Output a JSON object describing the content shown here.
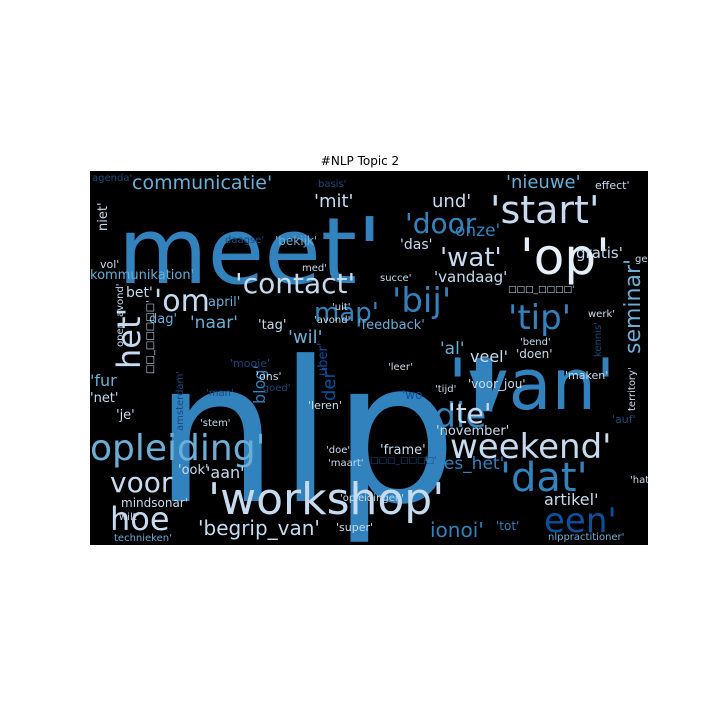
{
  "title": "#NLP Topic 2",
  "colors": {
    "background": "#000000",
    "strong": "#3182bd",
    "medium": "#6baed6",
    "light": "#c6dbef",
    "pale": "#e6f0fa",
    "dim": "#08519c",
    "dark": "#174a7c"
  },
  "words": [
    {
      "t": "meet'",
      "c": "strong"
    },
    {
      "t": "nlp'",
      "c": "strong"
    },
    {
      "t": "'workshop'",
      "c": "light"
    },
    {
      "t": "'van'",
      "c": "strong"
    },
    {
      "t": "'op'",
      "c": "pale"
    },
    {
      "t": "'start'",
      "c": "light"
    },
    {
      "t": "opleiding'",
      "c": "medium"
    },
    {
      "t": "weekend'",
      "c": "light"
    },
    {
      "t": "'contact'",
      "c": "light"
    },
    {
      "t": "'tip'",
      "c": "strong"
    },
    {
      "t": "'bij'",
      "c": "strong"
    },
    {
      "t": "'die'",
      "c": "strong"
    },
    {
      "t": "'dat'",
      "c": "strong"
    },
    {
      "t": "een'",
      "c": "dim"
    },
    {
      "t": "'om",
      "c": "light"
    },
    {
      "t": "het'",
      "c": "light"
    },
    {
      "t": "hoe",
      "c": "light"
    },
    {
      "t": "voor",
      "c": "light"
    },
    {
      "t": "'wat'",
      "c": "light"
    },
    {
      "t": "'door",
      "c": "strong"
    },
    {
      "t": "'te'",
      "c": "light"
    },
    {
      "t": "seminar'",
      "c": "medium"
    },
    {
      "t": "map'",
      "c": "strong"
    },
    {
      "t": "'begrip_van'",
      "c": "light"
    },
    {
      "t": "communicatie'",
      "c": "medium"
    },
    {
      "t": "'mit'",
      "c": "light"
    },
    {
      "t": "und'",
      "c": "light"
    },
    {
      "t": "'nieuwe'",
      "c": "medium"
    },
    {
      "t": "onze'",
      "c": "strong"
    },
    {
      "t": "'naar'",
      "c": "medium"
    },
    {
      "t": "'vandaag'",
      "c": "light"
    },
    {
      "t": "'wil'",
      "c": "medium"
    },
    {
      "t": "'lees_het'",
      "c": "strong"
    },
    {
      "t": "'aan'",
      "c": "light"
    },
    {
      "t": "ionoi'",
      "c": "strong"
    },
    {
      "t": "artikel'",
      "c": "light"
    },
    {
      "t": "blog'",
      "c": "strong"
    },
    {
      "t": "der'",
      "c": "dim"
    },
    {
      "t": "veel'",
      "c": "light"
    },
    {
      "t": "gratis'",
      "c": "light"
    },
    {
      "t": "effect'",
      "c": "light"
    },
    {
      "t": "agenda'",
      "c": "dark"
    },
    {
      "t": "basis'",
      "c": "dark"
    },
    {
      "t": "niet'",
      "c": "light"
    },
    {
      "t": "vol'",
      "c": "light"
    },
    {
      "t": "daagse'",
      "c": "dark"
    },
    {
      "t": "'bekijk'",
      "c": "medium"
    },
    {
      "t": "'das'",
      "c": "light"
    },
    {
      "t": "med'",
      "c": "light"
    },
    {
      "t": "succe'",
      "c": "light"
    },
    {
      "t": "gedrag'",
      "c": "light"
    },
    {
      "t": "kommunikation'",
      "c": "medium"
    },
    {
      "t": "bet'",
      "c": "light"
    },
    {
      "t": "april'",
      "c": "medium"
    },
    {
      "t": "dag'",
      "c": "medium"
    },
    {
      "t": "'tag'",
      "c": "light"
    },
    {
      "t": "'feedback'",
      "c": "medium"
    },
    {
      "t": "'uit'",
      "c": "light"
    },
    {
      "t": "'avond'",
      "c": "light"
    },
    {
      "t": "'al'",
      "c": "medium"
    },
    {
      "t": "'bend'",
      "c": "light"
    },
    {
      "t": "'doen'",
      "c": "light"
    },
    {
      "t": "'voor_jou'",
      "c": "light"
    },
    {
      "t": "'leer'",
      "c": "light"
    },
    {
      "t": "'tijd'",
      "c": "light"
    },
    {
      "t": "'mooie'",
      "c": "dark"
    },
    {
      "t": "'ons'",
      "c": "light"
    },
    {
      "t": "'man'",
      "c": "dark"
    },
    {
      "t": "'goed'",
      "c": "dark"
    },
    {
      "t": "'fur",
      "c": "medium"
    },
    {
      "t": "'net'",
      "c": "light"
    },
    {
      "t": "'je'",
      "c": "light"
    },
    {
      "t": "'stem'",
      "c": "light"
    },
    {
      "t": "'leren'",
      "c": "light"
    },
    {
      "t": "'doe'",
      "c": "light"
    },
    {
      "t": "'maart'",
      "c": "light"
    },
    {
      "t": "'frame'",
      "c": "light"
    },
    {
      "t": "'november'",
      "c": "light"
    },
    {
      "t": "'ook'",
      "c": "light"
    },
    {
      "t": "wilt'",
      "c": "light"
    },
    {
      "t": "mindsonar'",
      "c": "light"
    },
    {
      "t": "'opleidingen'",
      "c": "light"
    },
    {
      "t": "technieken'",
      "c": "medium"
    },
    {
      "t": "'super'",
      "c": "light"
    },
    {
      "t": "'tot'",
      "c": "strong"
    },
    {
      "t": "nlppractitioner'",
      "c": "medium"
    },
    {
      "t": "'hat'",
      "c": "light"
    },
    {
      "t": "territory'",
      "c": "light"
    },
    {
      "t": "'auf'",
      "c": "dark"
    },
    {
      "t": "'maken'",
      "c": "light"
    },
    {
      "t": "kennis'",
      "c": "dark"
    },
    {
      "t": "open_avond'",
      "c": "light"
    },
    {
      "t": "uber'",
      "c": "dim"
    },
    {
      "t": "'wo",
      "c": "dim"
    },
    {
      "t": "amsterdam'",
      "c": "dark"
    },
    {
      "t": "werk'",
      "c": "light"
    },
    {
      "t": "□□□_□□□□'",
      "c": "light"
    },
    {
      "t": "□□_□□□□□'",
      "c": "light"
    },
    {
      "t": "□□□_□□□□'",
      "c": "dark"
    }
  ]
}
